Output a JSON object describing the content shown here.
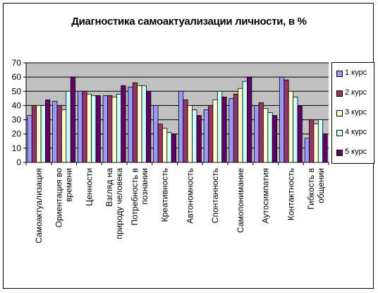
{
  "chart_data": {
    "type": "bar",
    "title": "Диагностика самоактуализации личности, в %",
    "ylim": [
      0,
      70
    ],
    "yticks": [
      0,
      10,
      20,
      30,
      40,
      50,
      60,
      70
    ],
    "grid": true,
    "legend_position": "right",
    "categories": [
      [
        "Самоактуализация"
      ],
      [
        "Ориентация во",
        "времени"
      ],
      [
        "Ценности"
      ],
      [
        "Взгляд на",
        "природу человека"
      ],
      [
        "Потребность в",
        "познании"
      ],
      [
        "Креативность"
      ],
      [
        "Автономность"
      ],
      [
        "Спонтанность"
      ],
      [
        "Самопонимание"
      ],
      [
        "Аутосимпатия"
      ],
      [
        "Контактность"
      ],
      [
        "Гибкость в",
        "общении"
      ]
    ],
    "series": [
      {
        "name": "1 курс",
        "color": "#9999ff",
        "values": [
          33,
          43,
          50,
          47,
          53,
          40,
          50,
          37,
          45,
          40,
          60,
          17
        ]
      },
      {
        "name": "2 курс",
        "color": "#993366",
        "values": [
          40,
          40,
          50,
          47,
          56,
          27,
          44,
          40,
          48,
          42,
          58,
          30
        ]
      },
      {
        "name": "3 курс",
        "color": "#ffffcc",
        "values": [
          40,
          37,
          48,
          46,
          54,
          24,
          40,
          44,
          52,
          38,
          50,
          27
        ]
      },
      {
        "name": "4 курс",
        "color": "#ccffff",
        "values": [
          40,
          50,
          47,
          48,
          54,
          21,
          37,
          50,
          57,
          35,
          46,
          30
        ]
      },
      {
        "name": "5 курс",
        "color": "#660066",
        "values": [
          44,
          60,
          47,
          54,
          50,
          20,
          33,
          46,
          60,
          33,
          40,
          20
        ]
      }
    ]
  }
}
